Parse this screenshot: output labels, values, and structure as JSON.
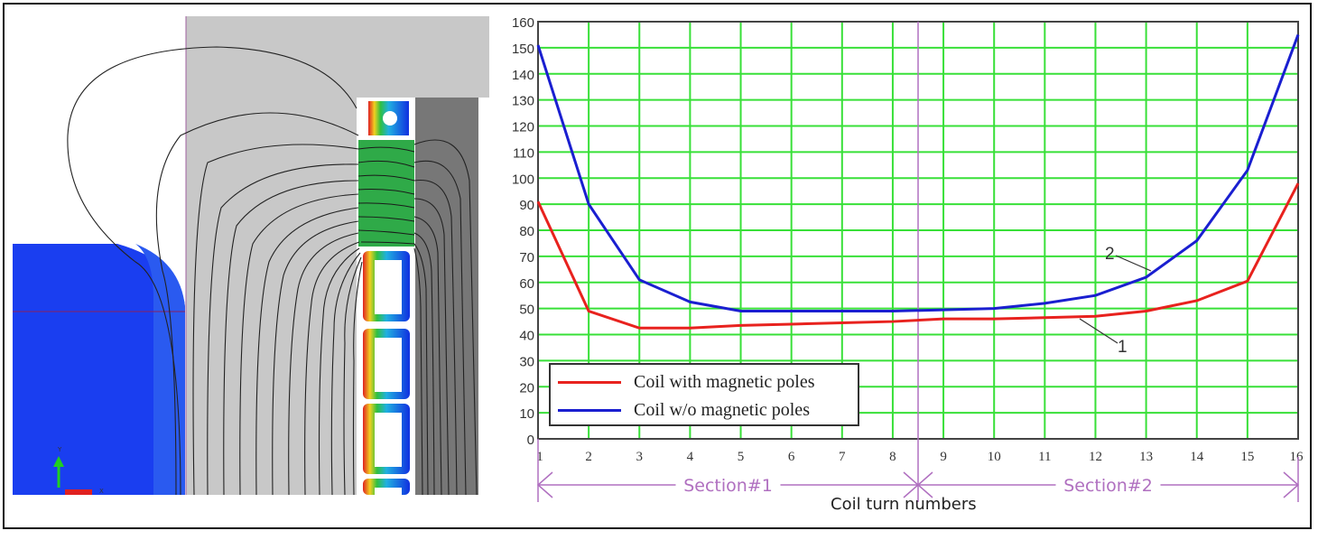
{
  "figure": {
    "left_panel": {
      "description": "Magnetic field FEM simulation: flux lines around coil turns and magnetic pole",
      "axis_triad": {
        "y_label": "Y",
        "x_label": "X"
      }
    },
    "right_panel": {
      "legend": [
        {
          "label": "Coil with magnetic poles",
          "color": "#e8221e"
        },
        {
          "label": "Coil w/o magnetic poles",
          "color": "#1a1fd0"
        }
      ],
      "curve_labels": [
        "1",
        "2"
      ],
      "sections": [
        "Section#1",
        "Section#2"
      ],
      "xlabel": "Coil turn numbers"
    }
  },
  "chart_data": {
    "type": "line",
    "title": "",
    "xlabel": "Coil turn numbers",
    "ylabel": "",
    "x": [
      1,
      2,
      3,
      4,
      5,
      6,
      7,
      8,
      9,
      10,
      11,
      12,
      13,
      14,
      15,
      16
    ],
    "xticks": [
      "1",
      "2",
      "3",
      "4",
      "5",
      "6",
      "7",
      "8",
      "9",
      "10",
      "11",
      "12",
      "13",
      "14",
      "15",
      "16"
    ],
    "yticks": [
      0,
      10,
      20,
      30,
      40,
      50,
      60,
      70,
      80,
      90,
      100,
      110,
      120,
      130,
      140,
      150,
      160
    ],
    "ylim": [
      0,
      160
    ],
    "xlim": [
      1,
      16
    ],
    "grid": true,
    "grid_color": "#38e038",
    "legend_position": "lower left",
    "series": [
      {
        "name": "Coil with magnetic poles",
        "label": "1",
        "color": "#e8221e",
        "values": [
          91,
          49,
          42.5,
          42.5,
          43.5,
          44,
          44.5,
          45,
          46,
          46,
          46.5,
          47,
          49,
          53,
          60.5,
          98
        ]
      },
      {
        "name": "Coil w/o magnetic poles",
        "label": "2",
        "color": "#1a1fd0",
        "values": [
          151,
          90,
          61,
          52.5,
          49,
          49,
          49,
          49,
          49.5,
          50,
          52,
          55,
          62,
          76,
          103,
          155
        ]
      }
    ],
    "annotations": [
      {
        "text": "Section#1",
        "from_x": 1,
        "to_x": 8.5
      },
      {
        "text": "Section#2",
        "from_x": 8.5,
        "to_x": 16
      },
      {
        "text": "1",
        "points_to": "Coil with magnetic poles"
      },
      {
        "text": "2",
        "points_to": "Coil w/o magnetic poles"
      }
    ],
    "divider_x": 8.5
  }
}
